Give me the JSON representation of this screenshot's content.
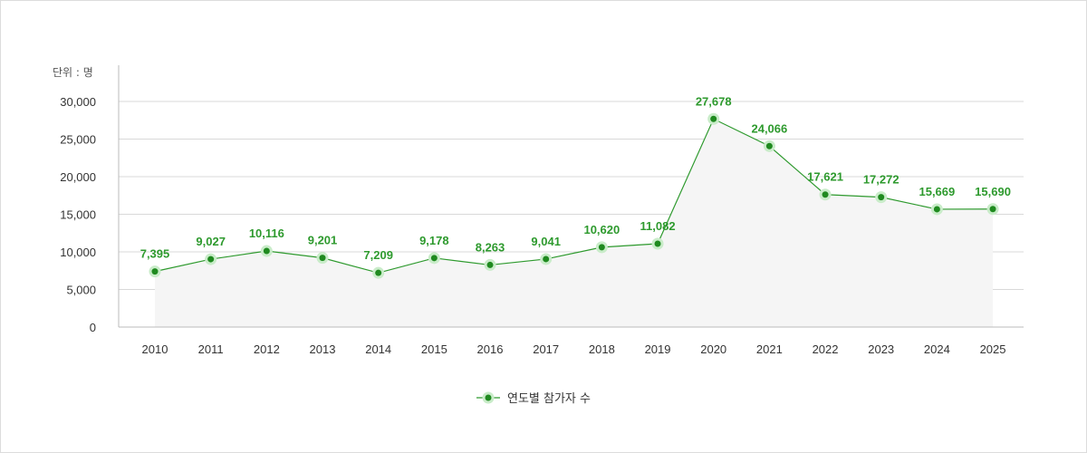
{
  "chart_data": {
    "type": "line",
    "unit_label": "단위 :  명",
    "x": [
      "2010",
      "2011",
      "2012",
      "2013",
      "2014",
      "2015",
      "2016",
      "2017",
      "2018",
      "2019",
      "2020",
      "2021",
      "2022",
      "2023",
      "2024",
      "2025"
    ],
    "series": [
      {
        "name": "연도별 참가자 수",
        "values": [
          7395,
          9027,
          10116,
          9201,
          7209,
          9178,
          8263,
          9041,
          10620,
          11082,
          27678,
          24066,
          17621,
          17272,
          15669,
          15690
        ],
        "labels": [
          "7,395",
          "9,027",
          "10,116",
          "9,201",
          "7,209",
          "9,178",
          "8,263",
          "9,041",
          "10,620",
          "11,082",
          "27,678",
          "24,066",
          "17,621",
          "17,272",
          "15,669",
          "15,690"
        ]
      }
    ],
    "y_ticks": [
      0,
      5000,
      10000,
      15000,
      20000,
      25000,
      30000
    ],
    "y_tick_labels": [
      "0",
      "5,000",
      "10,000",
      "15,000",
      "20,000",
      "25,000",
      "30,000"
    ],
    "ylim": [
      0,
      30000
    ],
    "grid": true,
    "legend_position": "bottom-center",
    "colors": {
      "line": "#2e9a2e",
      "marker": "#1f8a1f",
      "marker_halo": "#c9ecc9",
      "label": "#2e9a2e",
      "area": "#f5f5f5",
      "grid": "#d9d9d9",
      "axis": "#bbbbbb"
    }
  }
}
